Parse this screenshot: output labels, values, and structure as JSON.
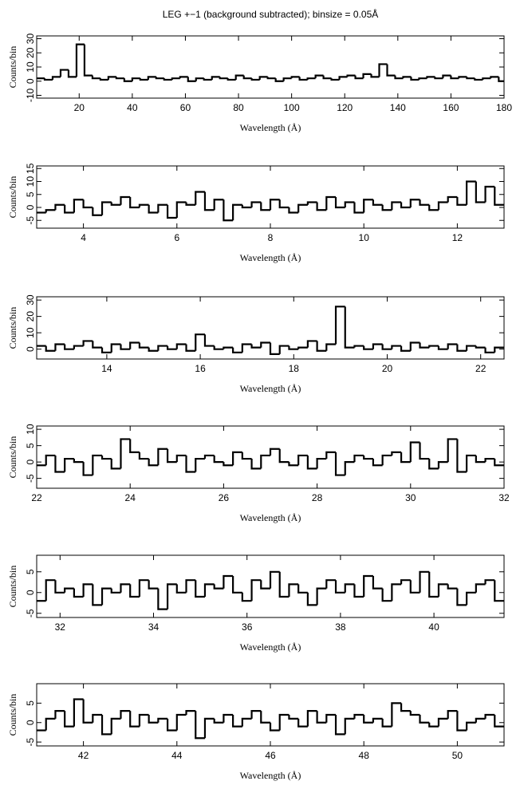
{
  "chart_data": [
    {
      "type": "step",
      "title": "LEG +−1 (background subtracted); binsize = 0.05Å",
      "xlabel": "Wavelength (Å)",
      "ylabel": "Counts/bin",
      "color": "#000000",
      "xlim": [
        4,
        180
      ],
      "xticks": [
        20,
        40,
        60,
        80,
        100,
        120,
        140,
        160,
        180
      ],
      "ylim": [
        -12,
        32
      ],
      "yticks": [
        -10,
        0,
        10,
        20,
        30
      ],
      "x": [
        4,
        7,
        10,
        13,
        16,
        19,
        22,
        25,
        28,
        31,
        34,
        37,
        40,
        43,
        46,
        49,
        52,
        55,
        58,
        61,
        64,
        67,
        70,
        73,
        76,
        79,
        82,
        85,
        88,
        91,
        94,
        97,
        100,
        103,
        106,
        109,
        112,
        115,
        118,
        121,
        124,
        127,
        130,
        133,
        136,
        139,
        142,
        145,
        148,
        151,
        154,
        157,
        160,
        163,
        166,
        169,
        172,
        175,
        178
      ],
      "values": [
        2,
        1,
        3,
        8,
        3,
        26,
        4,
        2,
        1,
        3,
        2,
        0,
        2,
        1,
        3,
        2,
        1,
        2,
        3,
        0,
        2,
        1,
        3,
        2,
        1,
        4,
        2,
        1,
        3,
        2,
        0,
        2,
        3,
        1,
        2,
        4,
        2,
        1,
        3,
        4,
        2,
        5,
        3,
        12,
        4,
        2,
        3,
        1,
        2,
        3,
        2,
        4,
        2,
        3,
        2,
        1,
        2,
        3,
        0
      ]
    },
    {
      "type": "step",
      "xlabel": "Wavelength (Å)",
      "ylabel": "Counts/bin",
      "color": "#000000",
      "xlim": [
        3,
        13
      ],
      "xticks": [
        4,
        6,
        8,
        10,
        12
      ],
      "ylim": [
        -8,
        16
      ],
      "yticks": [
        -5,
        0,
        5,
        10,
        15
      ],
      "x": [
        3,
        3.2,
        3.4,
        3.6,
        3.8,
        4,
        4.2,
        4.4,
        4.6,
        4.8,
        5,
        5.2,
        5.4,
        5.6,
        5.8,
        6,
        6.2,
        6.4,
        6.6,
        6.8,
        7,
        7.2,
        7.4,
        7.6,
        7.8,
        8,
        8.2,
        8.4,
        8.6,
        8.8,
        9,
        9.2,
        9.4,
        9.6,
        9.8,
        10,
        10.2,
        10.4,
        10.6,
        10.8,
        11,
        11.2,
        11.4,
        11.6,
        11.8,
        12,
        12.2,
        12.4,
        12.6,
        12.8
      ],
      "values": [
        -2,
        -1,
        1,
        -2,
        3,
        0,
        -3,
        2,
        1,
        4,
        0,
        1,
        -2,
        1,
        -4,
        2,
        1,
        6,
        -1,
        3,
        -5,
        1,
        0,
        2,
        -1,
        3,
        0,
        -2,
        1,
        2,
        -1,
        4,
        0,
        2,
        -2,
        3,
        1,
        -1,
        2,
        0,
        3,
        1,
        -1,
        2,
        4,
        1,
        10,
        2,
        8,
        1
      ]
    },
    {
      "type": "step",
      "xlabel": "Wavelength (Å)",
      "ylabel": "Counts/bin",
      "color": "#000000",
      "xlim": [
        12.5,
        22.5
      ],
      "xticks": [
        14,
        16,
        18,
        20,
        22
      ],
      "ylim": [
        -6,
        32
      ],
      "yticks": [
        0,
        10,
        20,
        30
      ],
      "x": [
        12.5,
        12.7,
        12.9,
        13.1,
        13.3,
        13.5,
        13.7,
        13.9,
        14.1,
        14.3,
        14.5,
        14.7,
        14.9,
        15.1,
        15.3,
        15.5,
        15.7,
        15.9,
        16.1,
        16.3,
        16.5,
        16.7,
        16.9,
        17.1,
        17.3,
        17.5,
        17.7,
        17.9,
        18.1,
        18.3,
        18.5,
        18.7,
        18.9,
        19.1,
        19.3,
        19.5,
        19.7,
        19.9,
        20.1,
        20.3,
        20.5,
        20.7,
        20.9,
        21.1,
        21.3,
        21.5,
        21.7,
        21.9,
        22.1,
        22.3
      ],
      "values": [
        2,
        -1,
        3,
        0,
        2,
        5,
        1,
        -2,
        3,
        0,
        4,
        1,
        -1,
        2,
        0,
        3,
        -1,
        9,
        2,
        0,
        1,
        -2,
        3,
        1,
        4,
        -3,
        2,
        0,
        1,
        5,
        -1,
        3,
        26,
        1,
        2,
        0,
        3,
        0,
        2,
        -1,
        4,
        1,
        2,
        0,
        3,
        -1,
        2,
        1,
        -2,
        1
      ]
    },
    {
      "type": "step",
      "xlabel": "Wavelength (Å)",
      "ylabel": "Counts/bin",
      "color": "#000000",
      "xlim": [
        22,
        32
      ],
      "xticks": [
        22,
        24,
        26,
        28,
        30,
        32
      ],
      "ylim": [
        -8,
        11
      ],
      "yticks": [
        -5,
        0,
        5,
        10
      ],
      "x": [
        22,
        22.2,
        22.4,
        22.6,
        22.8,
        23,
        23.2,
        23.4,
        23.6,
        23.8,
        24,
        24.2,
        24.4,
        24.6,
        24.8,
        25,
        25.2,
        25.4,
        25.6,
        25.8,
        26,
        26.2,
        26.4,
        26.6,
        26.8,
        27,
        27.2,
        27.4,
        27.6,
        27.8,
        28,
        28.2,
        28.4,
        28.6,
        28.8,
        29,
        29.2,
        29.4,
        29.6,
        29.8,
        30,
        30.2,
        30.4,
        30.6,
        30.8,
        31,
        31.2,
        31.4,
        31.6,
        31.8
      ],
      "values": [
        -1,
        2,
        -3,
        1,
        0,
        -4,
        2,
        1,
        -2,
        7,
        3,
        1,
        -1,
        4,
        0,
        2,
        -3,
        1,
        2,
        0,
        -1,
        3,
        1,
        -2,
        2,
        4,
        0,
        -1,
        2,
        -2,
        1,
        3,
        -4,
        0,
        2,
        1,
        -1,
        2,
        3,
        0,
        6,
        1,
        -2,
        0,
        7,
        -3,
        2,
        0,
        1,
        -1
      ]
    },
    {
      "type": "step",
      "xlabel": "Wavelength (Å)",
      "ylabel": "Counts/bin",
      "color": "#000000",
      "xlim": [
        31.5,
        41.5
      ],
      "xticks": [
        32,
        34,
        36,
        38,
        40
      ],
      "ylim": [
        -6,
        9
      ],
      "yticks": [
        -5,
        0,
        5
      ],
      "x": [
        31.5,
        31.7,
        31.9,
        32.1,
        32.3,
        32.5,
        32.7,
        32.9,
        33.1,
        33.3,
        33.5,
        33.7,
        33.9,
        34.1,
        34.3,
        34.5,
        34.7,
        34.9,
        35.1,
        35.3,
        35.5,
        35.7,
        35.9,
        36.1,
        36.3,
        36.5,
        36.7,
        36.9,
        37.1,
        37.3,
        37.5,
        37.7,
        37.9,
        38.1,
        38.3,
        38.5,
        38.7,
        38.9,
        39.1,
        39.3,
        39.5,
        39.7,
        39.9,
        40.1,
        40.3,
        40.5,
        40.7,
        40.9,
        41.1,
        41.3
      ],
      "values": [
        -2,
        3,
        0,
        1,
        -1,
        2,
        -3,
        1,
        0,
        2,
        -1,
        3,
        1,
        -4,
        2,
        0,
        3,
        -1,
        2,
        1,
        4,
        0,
        -2,
        3,
        1,
        5,
        -1,
        2,
        0,
        -3,
        1,
        3,
        0,
        2,
        -1,
        4,
        1,
        -2,
        2,
        3,
        0,
        5,
        -1,
        2,
        1,
        -3,
        0,
        2,
        3,
        -2
      ]
    },
    {
      "type": "step",
      "xlabel": "Wavelength (Å)",
      "ylabel": "Counts/bin",
      "color": "#000000",
      "xlim": [
        41,
        51
      ],
      "xticks": [
        42,
        44,
        46,
        48,
        50
      ],
      "ylim": [
        -6,
        10
      ],
      "yticks": [
        -5,
        0,
        5
      ],
      "x": [
        41,
        41.2,
        41.4,
        41.6,
        41.8,
        42,
        42.2,
        42.4,
        42.6,
        42.8,
        43,
        43.2,
        43.4,
        43.6,
        43.8,
        44,
        44.2,
        44.4,
        44.6,
        44.8,
        45,
        45.2,
        45.4,
        45.6,
        45.8,
        46,
        46.2,
        46.4,
        46.6,
        46.8,
        47,
        47.2,
        47.4,
        47.6,
        47.8,
        48,
        48.2,
        48.4,
        48.6,
        48.8,
        49,
        49.2,
        49.4,
        49.6,
        49.8,
        50,
        50.2,
        50.4,
        50.6,
        50.8
      ],
      "values": [
        -2,
        1,
        3,
        -1,
        6,
        0,
        2,
        -3,
        1,
        3,
        -1,
        2,
        0,
        1,
        -2,
        2,
        3,
        -4,
        1,
        0,
        2,
        -1,
        1,
        3,
        0,
        -2,
        2,
        1,
        -1,
        3,
        0,
        2,
        -3,
        1,
        2,
        0,
        1,
        -1,
        5,
        3,
        2,
        0,
        -1,
        1,
        3,
        -2,
        0,
        1,
        2,
        -1
      ]
    }
  ]
}
